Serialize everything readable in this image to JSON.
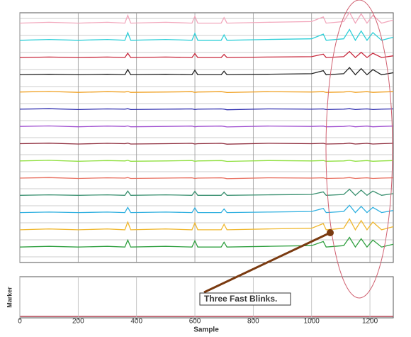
{
  "chart_data": {
    "type": "line",
    "xlabel": "Sample",
    "ylabel": "Marker",
    "annotation": "Three Fast Blinks.",
    "xlim": [
      0,
      1280
    ],
    "xticks": [
      0,
      200,
      400,
      600,
      800,
      1000,
      1200
    ],
    "ylim": [
      0,
      14.5
    ],
    "grid": true,
    "x": [
      0,
      100,
      200,
      300,
      360,
      370,
      380,
      500,
      590,
      600,
      610,
      690,
      700,
      710,
      850,
      1000,
      1040,
      1050,
      1110,
      1130,
      1150,
      1170,
      1190,
      1210,
      1240,
      1280
    ],
    "series": [
      {
        "color": "#f2a7bc",
        "values": [
          13.9,
          13.95,
          13.9,
          13.95,
          13.9,
          14.35,
          13.9,
          13.95,
          13.9,
          14.3,
          13.9,
          13.9,
          14.22,
          13.9,
          13.95,
          13.99,
          14.26,
          13.9,
          13.99,
          14.53,
          13.9,
          14.44,
          13.9,
          14.35,
          13.9,
          14.08
        ]
      },
      {
        "color": "#2ecfd8",
        "values": [
          12.9,
          12.95,
          12.9,
          12.95,
          12.9,
          13.35,
          12.9,
          12.95,
          12.9,
          13.3,
          12.9,
          12.9,
          13.22,
          12.9,
          12.95,
          12.99,
          13.26,
          12.9,
          12.99,
          13.53,
          12.9,
          13.44,
          12.9,
          13.35,
          12.9,
          13.08
        ]
      },
      {
        "color": "#c8283c",
        "values": [
          11.9,
          11.93,
          11.9,
          11.93,
          11.9,
          12.15,
          11.9,
          11.93,
          11.9,
          12.13,
          11.9,
          11.9,
          12.08,
          11.9,
          11.93,
          11.95,
          12.1,
          11.9,
          11.95,
          12.25,
          11.9,
          12.2,
          11.9,
          12.15,
          11.9,
          12
        ]
      },
      {
        "color": "#222222",
        "values": [
          10.9,
          10.93,
          10.9,
          10.93,
          10.9,
          11.2,
          10.9,
          10.93,
          10.9,
          11.17,
          10.9,
          10.9,
          11.11,
          10.9,
          10.93,
          10.96,
          11.14,
          10.9,
          10.96,
          11.32,
          10.9,
          11.26,
          10.9,
          11.2,
          10.9,
          11.02
        ]
      },
      {
        "color": "#f0a020",
        "values": [
          9.9,
          9.93,
          9.88,
          9.92,
          9.9,
          9.93,
          9.88,
          9.9,
          9.92,
          9.88,
          9.9,
          9.92,
          9.9,
          9.87,
          9.92,
          9.9,
          9.92,
          9.88,
          9.9,
          9.93,
          9.88,
          9.9,
          9.92,
          9.88,
          9.9,
          9.92
        ]
      },
      {
        "color": "#3030b0",
        "values": [
          8.9,
          8.93,
          8.88,
          8.92,
          8.9,
          8.93,
          8.88,
          8.9,
          8.92,
          8.88,
          8.9,
          8.92,
          8.9,
          8.87,
          8.92,
          8.9,
          8.92,
          8.88,
          8.9,
          8.93,
          8.88,
          8.9,
          8.92,
          8.88,
          8.9,
          8.92
        ]
      },
      {
        "color": "#a050d0",
        "values": [
          7.9,
          7.93,
          7.88,
          7.92,
          7.9,
          7.93,
          7.88,
          7.9,
          7.92,
          7.88,
          7.9,
          7.92,
          7.9,
          7.87,
          7.92,
          7.9,
          7.92,
          7.88,
          7.9,
          7.93,
          7.88,
          7.9,
          7.92,
          7.88,
          7.9,
          7.92
        ]
      },
      {
        "color": "#903040",
        "values": [
          6.9,
          6.93,
          6.88,
          6.92,
          6.9,
          6.93,
          6.88,
          6.9,
          6.92,
          6.88,
          6.9,
          6.92,
          6.9,
          6.87,
          6.92,
          6.9,
          6.92,
          6.88,
          6.9,
          6.93,
          6.88,
          6.9,
          6.92,
          6.88,
          6.9,
          6.92
        ]
      },
      {
        "color": "#90e040",
        "values": [
          5.9,
          5.93,
          5.88,
          5.92,
          5.9,
          5.93,
          5.88,
          5.9,
          5.92,
          5.88,
          5.9,
          5.92,
          5.9,
          5.87,
          5.92,
          5.9,
          5.92,
          5.88,
          5.9,
          5.93,
          5.88,
          5.9,
          5.92,
          5.88,
          5.9,
          5.92
        ]
      },
      {
        "color": "#e87060",
        "values": [
          4.9,
          4.93,
          4.88,
          4.92,
          4.9,
          4.93,
          4.88,
          4.9,
          4.92,
          4.88,
          4.9,
          4.92,
          4.9,
          4.87,
          4.92,
          4.9,
          4.92,
          4.88,
          4.9,
          4.93,
          4.88,
          4.9,
          4.92,
          4.88,
          4.9,
          4.92
        ]
      },
      {
        "color": "#3a9070",
        "values": [
          3.9,
          3.93,
          3.9,
          3.93,
          3.9,
          4.15,
          3.9,
          3.93,
          3.9,
          4.13,
          3.9,
          3.9,
          4.08,
          3.9,
          3.93,
          3.95,
          4.1,
          3.9,
          3.95,
          4.25,
          3.9,
          4.2,
          3.9,
          4.15,
          3.9,
          4
        ]
      },
      {
        "color": "#30b0e0",
        "values": [
          2.9,
          2.93,
          2.9,
          2.93,
          2.9,
          3.2,
          2.9,
          2.93,
          2.9,
          3.17,
          2.9,
          2.9,
          3.11,
          2.9,
          2.93,
          2.96,
          3.14,
          2.9,
          2.96,
          3.32,
          2.9,
          3.26,
          2.9,
          3.2,
          2.9,
          3.02
        ]
      },
      {
        "color": "#f0b830",
        "values": [
          1.9,
          1.95,
          1.9,
          1.95,
          1.9,
          2.35,
          1.9,
          1.95,
          1.9,
          2.3,
          1.9,
          1.9,
          2.22,
          1.9,
          1.95,
          1.99,
          2.26,
          1.9,
          1.99,
          2.53,
          1.9,
          2.44,
          1.9,
          2.35,
          1.9,
          2.08
        ]
      },
      {
        "color": "#30a040",
        "values": [
          0.9,
          0.94,
          0.9,
          0.94,
          0.9,
          1.3,
          0.9,
          0.94,
          0.9,
          1.26,
          0.9,
          0.9,
          1.18,
          0.9,
          0.94,
          0.98,
          1.22,
          0.9,
          0.98,
          1.46,
          0.9,
          1.38,
          0.9,
          1.3,
          0.9,
          1.06
        ]
      }
    ]
  }
}
